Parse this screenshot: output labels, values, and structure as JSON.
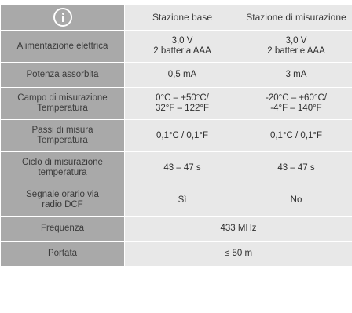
{
  "header": {
    "icon": "info-icon",
    "col_base": "Stazione base",
    "col_sensor": "Stazione di misurazione"
  },
  "rows": [
    {
      "label": [
        "Alimentazione elettrica"
      ],
      "base": [
        "3,0 V",
        "2 batteria AAA"
      ],
      "sensor": [
        "3,0 V",
        "2 batterie AAA"
      ]
    },
    {
      "label": [
        "Potenza assorbita"
      ],
      "base": [
        "0,5 mA"
      ],
      "sensor": [
        "3 mA"
      ]
    },
    {
      "label": [
        "Campo di misurazione",
        "Temperatura"
      ],
      "base": [
        "0°C – +50°C/",
        "32°F – 122°F"
      ],
      "sensor": [
        "-20°C – +60°C/",
        "-4°F – 140°F"
      ]
    },
    {
      "label": [
        "Passi di misura",
        "Temperatura"
      ],
      "base": [
        "0,1°C / 0,1°F"
      ],
      "sensor": [
        "0,1°C / 0,1°F"
      ]
    },
    {
      "label": [
        "Ciclo di misurazione",
        "temperatura"
      ],
      "base": [
        "43 – 47 s"
      ],
      "sensor": [
        "43 – 47 s"
      ]
    },
    {
      "label": [
        "Segnale orario via",
        "radio DCF"
      ],
      "base": [
        "Sì"
      ],
      "sensor": [
        "No"
      ]
    },
    {
      "label": [
        "Frequenza"
      ],
      "merged": [
        "433 MHz"
      ]
    },
    {
      "label": [
        "Portata"
      ],
      "merged": [
        "≤ 50 m"
      ]
    }
  ]
}
